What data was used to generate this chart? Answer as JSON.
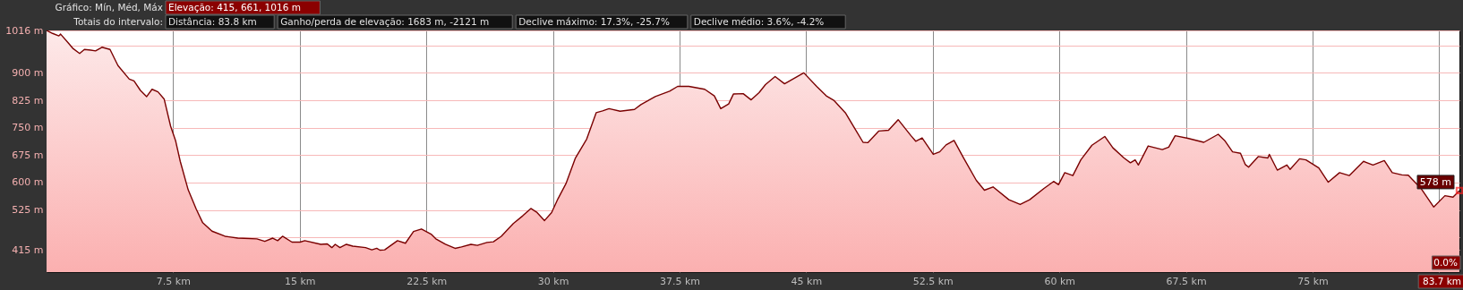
{
  "chart_data": {
    "type": "area",
    "annotations": [
      "Gráfico: Mín, Méd, Máx",
      "Elevação: 415, 661, 1016 m",
      "Totais do intervalo:",
      "Distância: 83.8 km",
      "Ganho/perda de elevação: 1683 m, -2121 m",
      "Declive máximo: 17.3%, -25.7%",
      "Declive médio: 3.6%, -4.2%",
      "0.0%",
      "83.7 km",
      {
        "text": "578 m",
        "x": 83.7,
        "y": 578
      }
    ],
    "x": [
      0,
      0.35,
      0.73,
      0.83,
      1.3,
      1.58,
      1.96,
      2.24,
      2.62,
      2.9,
      3.28,
      3.76,
      4.23,
      4.9,
      5.18,
      5.56,
      5.93,
      6.25,
      6.6,
      6.97,
      7.35,
      7.64,
      7.92,
      8.39,
      8.87,
      9.25,
      9.8,
      10.57,
      11.33,
      12.46,
      12.93,
      13.4,
      13.69,
      13.98,
      14.54,
      15.02,
      15.3,
      16.25,
      16.63,
      16.9,
      17.1,
      17.38,
      17.76,
      18.14,
      18.9,
      19.27,
      19.56,
      19.75,
      20.03,
      20.79,
      21.26,
      21.74,
      22.21,
      22.78,
      23.06,
      23.63,
      24.2,
      24.58,
      25.14,
      25.52,
      26.09,
      26.47,
      26.94,
      27.65,
      28.21,
      28.69,
      29.06,
      29.5,
      29.92,
      30.29,
      30.77,
      31.33,
      32.0,
      32.56,
      32.94,
      33.32,
      33.98,
      34.83,
      35.21,
      36.06,
      36.91,
      37.39,
      38.05,
      38.99,
      39.56,
      39.94,
      40.41,
      40.69,
      41.27,
      41.74,
      42.21,
      42.59,
      43.16,
      43.72,
      44.86,
      45.62,
      46.19,
      46.66,
      47.32,
      47.89,
      48.37,
      48.65,
      49.31,
      49.88,
      50.45,
      51.21,
      51.49,
      51.87,
      52.53,
      52.91,
      53.29,
      53.76,
      54.33,
      55.08,
      55.56,
      56.07,
      57.01,
      57.68,
      58.24,
      59.09,
      59.66,
      59.95,
      60.32,
      60.8,
      61.27,
      61.93,
      62.69,
      63.17,
      63.83,
      64.21,
      64.49,
      64.68,
      65.26,
      66.1,
      66.48,
      66.86,
      67.61,
      68.56,
      69.41,
      69.79,
      70.26,
      70.73,
      71.02,
      71.21,
      71.78,
      72.35,
      72.44,
      72.91,
      73.48,
      73.67,
      74.23,
      74.61,
      75.37,
      75.93,
      76.6,
      77.17,
      78.02,
      78.58,
      79.25,
      79.72,
      80.29,
      80.67,
      81.42,
      82.18,
      82.84,
      83.32,
      83.7
    ],
    "series": [
      {
        "color": "#7a0000",
        "values": [
          1016,
          1008,
          1001,
          1006,
          981,
          966,
          953,
          964,
          962,
          960,
          970,
          964,
          920,
          883,
          878,
          852,
          835,
          855,
          848,
          828,
          754,
          715,
          658,
          580,
          527,
          490,
          467,
          453,
          448,
          446,
          439,
          448,
          441,
          453,
          437,
          437,
          441,
          431,
          432,
          422,
          431,
          422,
          431,
          426,
          422,
          416,
          420,
          415,
          416,
          441,
          434,
          466,
          473,
          459,
          446,
          431,
          420,
          424,
          431,
          428,
          436,
          438,
          453,
          488,
          509,
          529,
          518,
          496,
          518,
          555,
          597,
          667,
          719,
          791,
          796,
          802,
          795,
          800,
          813,
          835,
          850,
          863,
          863,
          855,
          837,
          802,
          815,
          842,
          843,
          826,
          846,
          868,
          890,
          870,
          900,
          863,
          837,
          824,
          791,
          747,
          710,
          709,
          741,
          743,
          772,
          728,
          713,
          722,
          677,
          684,
          703,
          715,
          667,
          606,
          579,
          588,
          553,
          540,
          553,
          584,
          603,
          594,
          627,
          619,
          662,
          702,
          726,
          695,
          667,
          654,
          662,
          648,
          700,
          690,
          697,
          728,
          721,
          710,
          732,
          715,
          684,
          680,
          649,
          642,
          671,
          667,
          677,
          634,
          648,
          636,
          665,
          662,
          640,
          601,
          627,
          619,
          658,
          648,
          660,
          627,
          621,
          620,
          584,
          533,
          564,
          560,
          578
        ]
      }
    ],
    "xlim": [
      0,
      83.7
    ],
    "xticks": [
      {
        "value": 7.5,
        "label": "7.5 km"
      },
      {
        "value": 15,
        "label": "15 km"
      },
      {
        "value": 22.5,
        "label": "22.5 km"
      },
      {
        "value": 30,
        "label": "30 km"
      },
      {
        "value": 37.5,
        "label": "37.5 km"
      },
      {
        "value": 45,
        "label": "45 km"
      },
      {
        "value": 52.5,
        "label": "52.5 km"
      },
      {
        "value": 60,
        "label": "60 km"
      },
      {
        "value": 67.5,
        "label": "67.5 km"
      },
      {
        "value": 75,
        "label": "75 km"
      },
      {
        "value": 82.5,
        "label": null
      }
    ],
    "ylim": [
      355,
      1016
    ],
    "yticks": [
      {
        "value": 415,
        "label": "415 m"
      },
      {
        "value": 450,
        "label": null
      },
      {
        "value": 525,
        "label": "525 m"
      },
      {
        "value": 600,
        "label": "600 m"
      },
      {
        "value": 675,
        "label": "675 m"
      },
      {
        "value": 750,
        "label": "750 m"
      },
      {
        "value": 825,
        "label": "825 m"
      },
      {
        "value": 900,
        "label": "900 m"
      },
      {
        "value": 975,
        "label": null
      },
      {
        "value": 1016,
        "label": "1016 m"
      }
    ],
    "grid": true
  }
}
